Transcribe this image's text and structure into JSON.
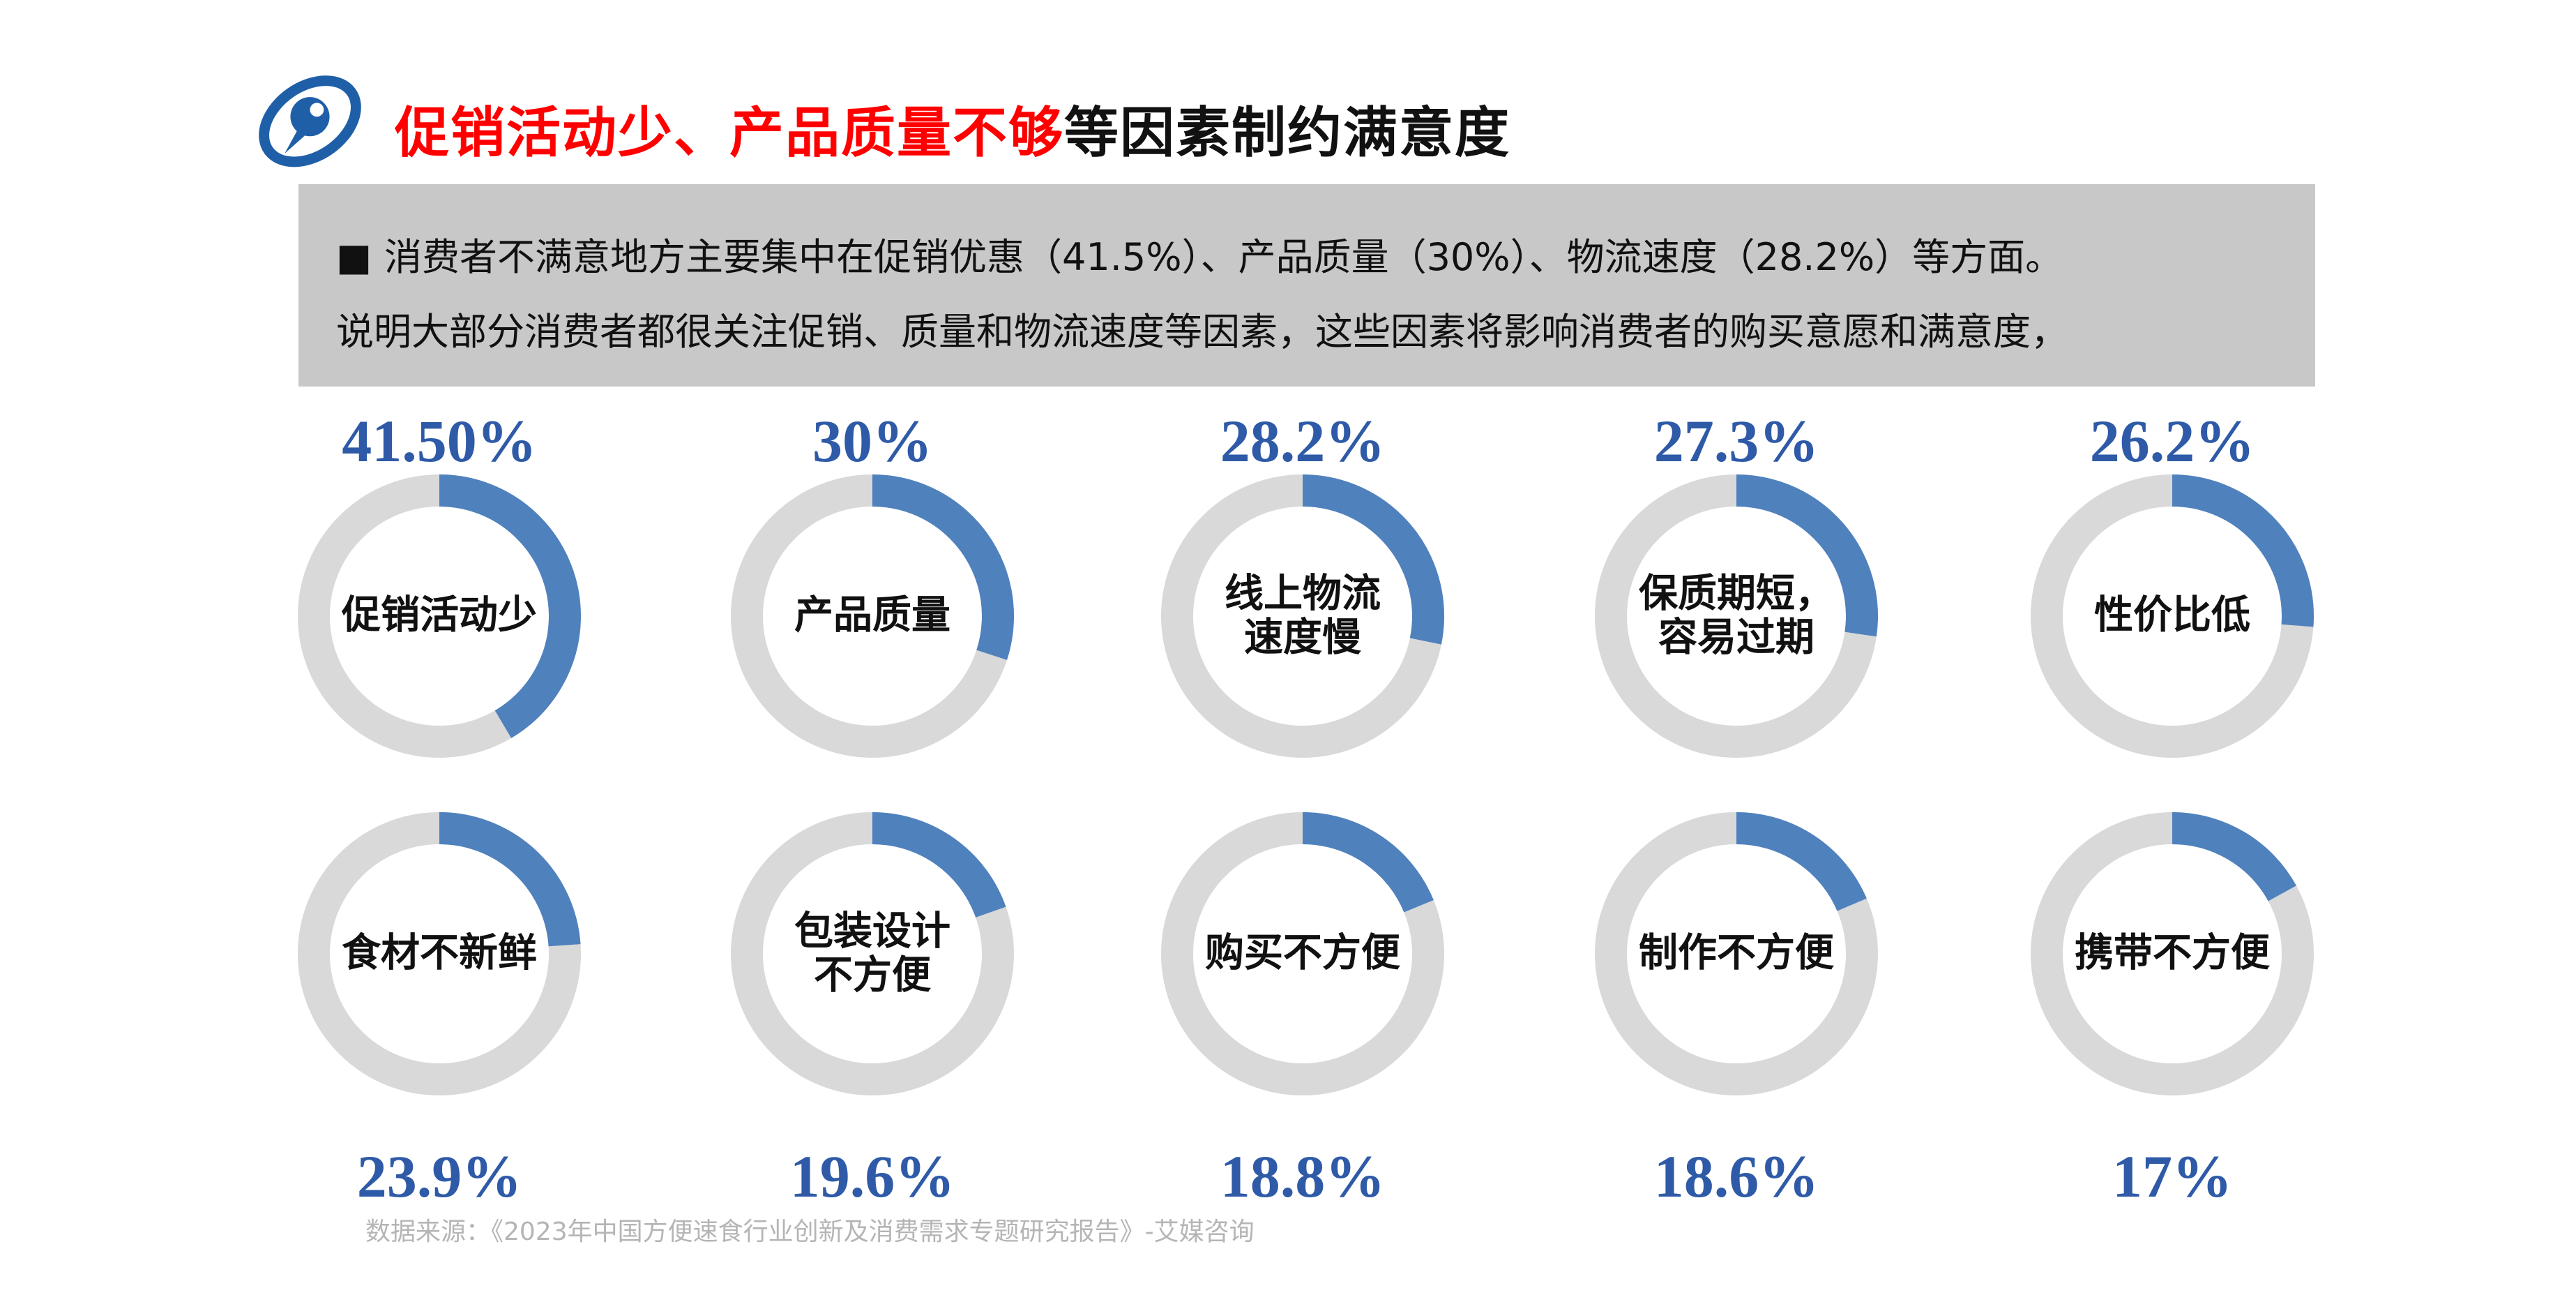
{
  "title": {
    "red": "促销活动少、产品质量不够",
    "black": "等因素制约满意度"
  },
  "summary": {
    "bullet": "■",
    "line1": "消费者不满意地方主要集中在促销优惠（41.5%）、产品质量（30%）、物流速度（28.2%）等方面。",
    "line2": "说明大部分消费者都很关注促销、质量和物流速度等因素，这些因素将影响消费者的购买意愿和满意度，"
  },
  "source": "数据来源：《2023年中国方便速食行业创新及消费需求专题研究报告》-艾媒咨询",
  "colors": {
    "value": "#4f81bd",
    "track": "#d9d9d9",
    "percent_text": "#2e5aa7"
  },
  "chart_data": {
    "type": "pie",
    "subtype": "donut",
    "unit": "%",
    "items": [
      {
        "label": "促销活动少",
        "value": 41.5,
        "display": "41.50%"
      },
      {
        "label": "产品质量",
        "value": 30,
        "display": "30%"
      },
      {
        "label": "线上物流\n速度慢",
        "value": 28.2,
        "display": "28.2%"
      },
      {
        "label": "保质期短，\n容易过期",
        "value": 27.3,
        "display": "27.3%"
      },
      {
        "label": "性价比低",
        "value": 26.2,
        "display": "26.2%"
      },
      {
        "label": "食材不新鲜",
        "value": 23.9,
        "display": "23.9%"
      },
      {
        "label": "包装设计\n不方便",
        "value": 19.6,
        "display": "19.6%"
      },
      {
        "label": "购买不方便",
        "value": 18.8,
        "display": "18.8%"
      },
      {
        "label": "制作不方便",
        "value": 18.6,
        "display": "18.6%"
      },
      {
        "label": "携带不方便",
        "value": 17,
        "display": "17%"
      }
    ]
  }
}
